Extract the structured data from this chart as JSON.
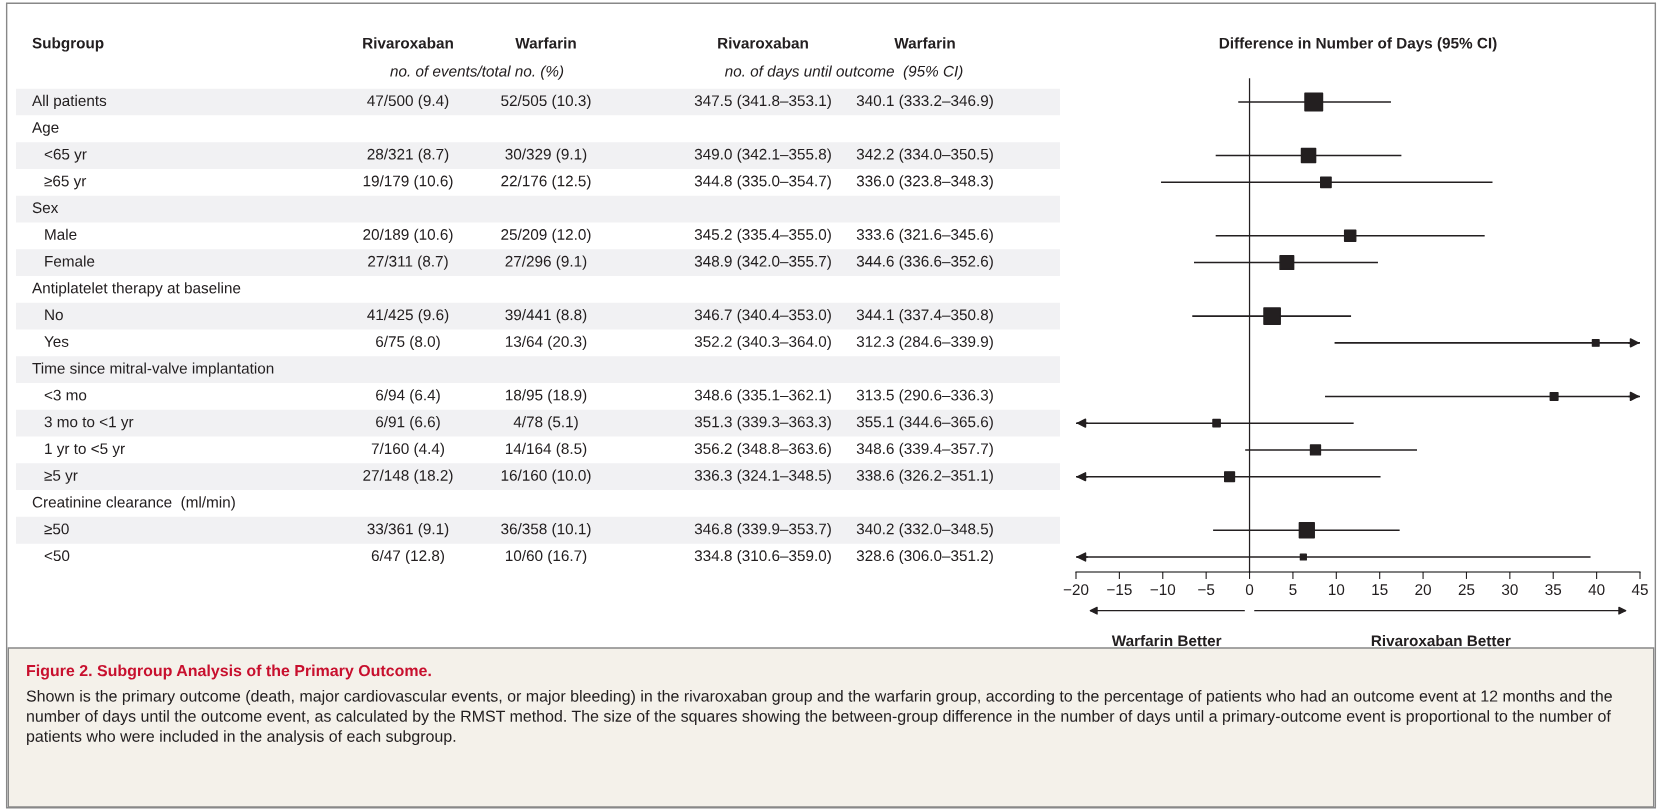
{
  "chart_data": [
    {
      "type": "other",
      "title": "Figure 2. Subgroup Analysis of the Primary Outcome.",
      "categories": [
        "Subgroup",
        "Rivaroxaban",
        "Warfarin",
        "Rivaroxaban",
        "Warfarin"
      ],
      "annotations": [
        "no. of events/total no. (%)",
        "no. of days until outcome  (95% CI)",
        "Shown is the primary outcome (death, major cardiovascular events, or major bleeding) in the rivaroxaban group and the warfarin group, according to the percentage of patients who had an outcome event at 12 months and the number of days until the outcome event, as calculated by the RMST method. The size of the squares showing the between-group difference in the number of days until a primary-outcome event is proportional to the number of patients who were included in the analysis of each subgroup."
      ],
      "y_categories": [
        "All patients",
        "Age",
        "<65 yr",
        "≥65 yr",
        "Sex",
        "Male",
        "Female",
        "Antiplatelet therapy at baseline",
        "No",
        "Yes",
        "Time since mitral-valve implantation",
        "<3 mo",
        "3 mo to <1 yr",
        "1 yr to <5 yr",
        "≥5 yr",
        "Creatinine clearance  (ml/min)",
        "≥50",
        "<50"
      ],
      "cell_labels": [
        [
          "47/500 (9.4)",
          "52/505 (10.3)",
          "347.5 (341.8–353.1)",
          "340.1 (333.2–346.9)"
        ],
        null,
        [
          "28/321 (8.7)",
          "30/329 (9.1)",
          "349.0 (342.1–355.8)",
          "342.2 (334.0–350.5)"
        ],
        [
          "19/179 (10.6)",
          "22/176 (12.5)",
          "344.8 (335.0–354.7)",
          "336.0 (323.8–348.3)"
        ],
        null,
        [
          "20/189 (10.6)",
          "25/209 (12.0)",
          "345.2 (335.4–355.0)",
          "333.6 (321.6–345.6)"
        ],
        [
          "27/311 (8.7)",
          "27/296 (9.1)",
          "348.9 (342.0–355.7)",
          "344.6 (336.6–352.6)"
        ],
        null,
        [
          "41/425 (9.6)",
          "39/441 (8.8)",
          "346.7 (340.4–353.0)",
          "344.1 (337.4–350.8)"
        ],
        [
          "6/75 (8.0)",
          "13/64 (20.3)",
          "352.2 (340.3–364.0)",
          "312.3 (284.6–339.9)"
        ],
        null,
        [
          "6/94 (6.4)",
          "18/95 (18.9)",
          "348.6 (335.1–362.1)",
          "313.5 (290.6–336.3)"
        ],
        [
          "6/91 (6.6)",
          "4/78 (5.1)",
          "351.3 (339.3–363.3)",
          "355.1 (344.6–365.6)"
        ],
        [
          "7/160 (4.4)",
          "14/164 (8.5)",
          "356.2 (348.8–363.6)",
          "348.6 (339.4–357.7)"
        ],
        [
          "27/148 (18.2)",
          "16/160 (10.0)",
          "336.3 (324.1–348.5)",
          "338.6 (326.2–351.1)"
        ],
        null,
        [
          "33/361 (9.1)",
          "36/358 (10.1)",
          "346.8 (339.9–353.7)",
          "340.2 (332.0–348.5)"
        ],
        [
          "6/47 (12.8)",
          "10/60 (16.7)",
          "334.8 (310.6–359.0)",
          "328.6 (306.0–351.2)"
        ]
      ]
    },
    {
      "type": "scatter",
      "orientation": "horizontal",
      "title": "Difference in Number of Days (95% CI)",
      "categories": [
        null,
        null,
        null,
        null,
        null,
        null,
        null,
        null,
        null,
        null,
        null,
        null,
        null,
        null,
        null,
        null,
        null,
        null
      ],
      "values": [
        7.4,
        null,
        6.8,
        8.8,
        null,
        11.6,
        4.3,
        null,
        2.6,
        39.9,
        null,
        35.1,
        -3.8,
        7.6,
        -2.3,
        null,
        6.6,
        6.2
      ],
      "errors": [
        [
          -1.3,
          16.3
        ],
        null,
        [
          -3.9,
          17.5
        ],
        [
          -10.2,
          28.0
        ],
        null,
        [
          -3.9,
          27.1
        ],
        [
          -6.4,
          14.8
        ],
        null,
        [
          -6.6,
          11.7
        ],
        [
          9.8,
          45
        ],
        null,
        [
          8.7,
          45
        ],
        [
          -20,
          12.0
        ],
        [
          -0.5,
          19.3
        ],
        [
          -20,
          15.1
        ],
        null,
        [
          -4.2,
          17.3
        ],
        [
          -20,
          39.3
        ]
      ],
      "sizes": [
        1,
        null,
        0.65,
        0.35,
        null,
        0.4,
        0.6,
        null,
        0.86,
        0.14,
        null,
        0.19,
        0.17,
        0.32,
        0.31,
        null,
        0.72,
        0.11
      ],
      "color": "#231f20",
      "marker": "square",
      "xlim": [
        -20,
        45
      ],
      "xticks": [
        {
          "value": -20,
          "label": "−20"
        },
        {
          "value": -15,
          "label": "−15"
        },
        {
          "value": -10,
          "label": "−10"
        },
        {
          "value": -5,
          "label": "−5"
        },
        0,
        5,
        10,
        15,
        20,
        25,
        30,
        35,
        40,
        45
      ],
      "ref_lines": [
        {
          "axis": "x",
          "value": 0
        }
      ],
      "annotations": [
        "Warfarin Better",
        "Rivaroxaban Better"
      ]
    }
  ]
}
